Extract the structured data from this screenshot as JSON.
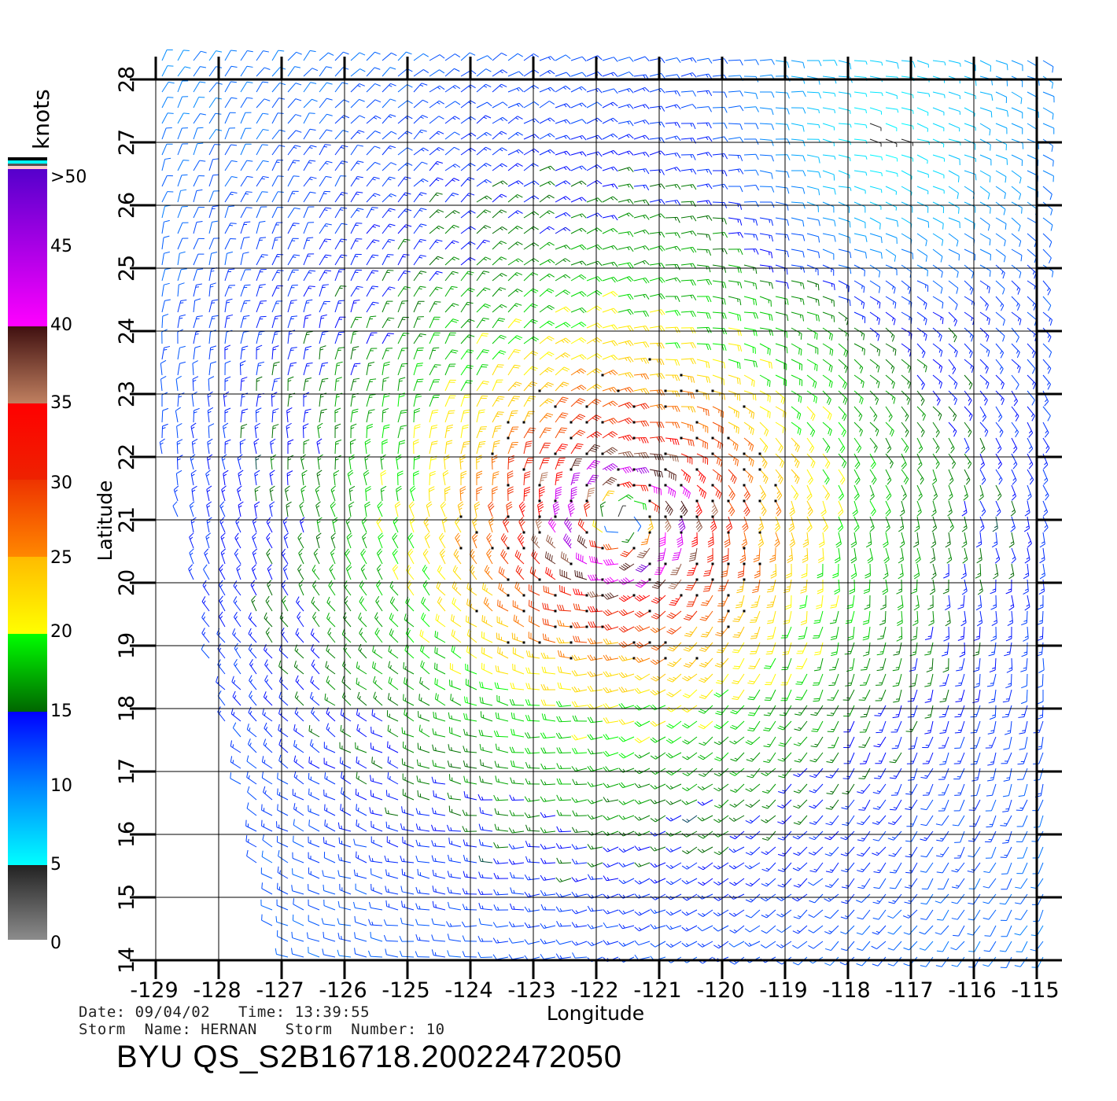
{
  "chart_data": {
    "type": "wind-barb-map",
    "title": "BYU QS_S2B16718.20022472050",
    "xlabel": "Longitude",
    "ylabel": "Latitude",
    "xlim": [
      -129,
      -115
    ],
    "ylim": [
      14,
      28
    ],
    "xticks": [
      "-129",
      "-128",
      "-127",
      "-126",
      "-125",
      "-124",
      "-123",
      "-122",
      "-121",
      "-120",
      "-119",
      "-118",
      "-117",
      "-116",
      "-115"
    ],
    "yticks": [
      "28",
      "27",
      "26",
      "25",
      "24",
      "23",
      "22",
      "21",
      "20",
      "19",
      "18",
      "17",
      "16",
      "15",
      "14"
    ],
    "grid": true,
    "colorbar": {
      "title": "knots",
      "labels": [
        ">50",
        "45",
        "40",
        "35",
        "30",
        "25",
        "20",
        "15",
        "10",
        "5",
        "0"
      ],
      "stops": [
        {
          "kt": 0,
          "color": "#8c8c8c"
        },
        {
          "kt": 5,
          "color": "#222222"
        },
        {
          "kt": 5.01,
          "color": "#00ffff"
        },
        {
          "kt": 10,
          "color": "#0088ff"
        },
        {
          "kt": 15,
          "color": "#0000ff"
        },
        {
          "kt": 15.01,
          "color": "#006600"
        },
        {
          "kt": 20,
          "color": "#00ff00"
        },
        {
          "kt": 20.01,
          "color": "#ffff00"
        },
        {
          "kt": 25,
          "color": "#ffbb00"
        },
        {
          "kt": 25.01,
          "color": "#ff8800"
        },
        {
          "kt": 30,
          "color": "#ee2200"
        },
        {
          "kt": 35,
          "color": "#ff0000"
        },
        {
          "kt": 35.01,
          "color": "#c08060"
        },
        {
          "kt": 40,
          "color": "#401010"
        },
        {
          "kt": 40.01,
          "color": "#ff00ff"
        },
        {
          "kt": 50,
          "color": "#5500cc"
        }
      ]
    },
    "storm_center": {
      "lon": -121.6,
      "lat": 21.0
    },
    "max_wind_kt": 46,
    "radius_max_wind_deg": 0.8,
    "grid_spacing_deg": 0.25
  },
  "info": {
    "date_line": "Date: 09/04/02   Time: 13:39:55",
    "storm_line": "Storm  Name: HERNAN   Storm  Number: 10"
  }
}
